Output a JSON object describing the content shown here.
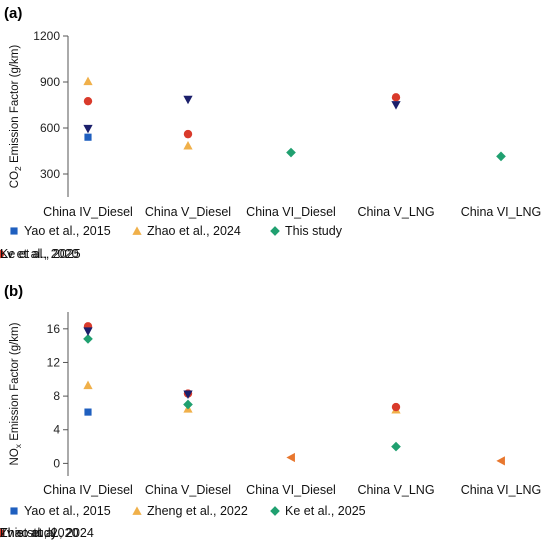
{
  "chart_data": [
    {
      "type": "scatter",
      "panel": "(a)",
      "ylabel_main": "CO",
      "ylabel_sub": "2",
      "ylabel_rest": " Emission Factor (g/km)",
      "categories": [
        "China IV_Diesel",
        "China V_Diesel",
        "China VI_Diesel",
        "China V_LNG",
        "China VI_LNG"
      ],
      "ylim": [
        150,
        1200
      ],
      "yticks": [
        300,
        600,
        900,
        1200
      ],
      "grid": false,
      "legend_position": "bottom",
      "series": [
        {
          "name": "Yao et al., 2015",
          "marker": "square",
          "color": "#1f5fbf",
          "values": [
            540,
            null,
            null,
            null,
            null
          ]
        },
        {
          "name": "Zhao et al., 2024",
          "marker": "triangle-up",
          "color": "#f0b04a",
          "values": [
            905,
            485,
            null,
            null,
            null
          ]
        },
        {
          "name": "This study",
          "marker": "diamond",
          "color": "#20a070",
          "values": [
            null,
            null,
            440,
            null,
            415
          ]
        },
        {
          "name": "Lv et al., 2020",
          "marker": "circle",
          "color": "#d93a2b",
          "values": [
            775,
            560,
            null,
            800,
            null
          ]
        },
        {
          "name": "Ke et al., 2025",
          "marker": "triangle-down",
          "color": "#1b1f6b",
          "values": [
            595,
            785,
            null,
            750,
            null
          ]
        }
      ]
    },
    {
      "type": "scatter",
      "panel": "(b)",
      "ylabel_main": "NO",
      "ylabel_sub": "x",
      "ylabel_rest": " Emission Factor (g/km)",
      "categories": [
        "China IV_Diesel",
        "China V_Diesel",
        "China VI_Diesel",
        "China V_LNG",
        "China VI_LNG"
      ],
      "ylim": [
        -1.5,
        18
      ],
      "yticks": [
        0,
        4,
        8,
        12,
        16
      ],
      "grid": false,
      "legend_position": "bottom",
      "series": [
        {
          "name": "Yao et al., 2015",
          "marker": "square",
          "color": "#1f5fbf",
          "values": [
            6.1,
            null,
            null,
            null,
            null
          ]
        },
        {
          "name": "Zheng et al., 2022",
          "marker": "triangle-up",
          "color": "#f0b04a",
          "values": [
            9.3,
            6.5,
            null,
            6.4,
            null
          ]
        },
        {
          "name": "Ke et al., 2025",
          "marker": "diamond",
          "color": "#20a070",
          "values": [
            14.8,
            7.0,
            null,
            2.0,
            null
          ]
        },
        {
          "name": "Lv et al., 2020",
          "marker": "circle",
          "color": "#d93a2b",
          "values": [
            16.3,
            8.3,
            null,
            6.7,
            null
          ]
        },
        {
          "name": "Zhao et al., 2024",
          "marker": "triangle-down",
          "color": "#1b1f6b",
          "values": [
            15.7,
            8.2,
            null,
            null,
            null
          ]
        },
        {
          "name": "This study",
          "marker": "triangle-left",
          "color": "#e8772e",
          "values": [
            null,
            null,
            0.7,
            null,
            0.3
          ]
        }
      ]
    }
  ]
}
